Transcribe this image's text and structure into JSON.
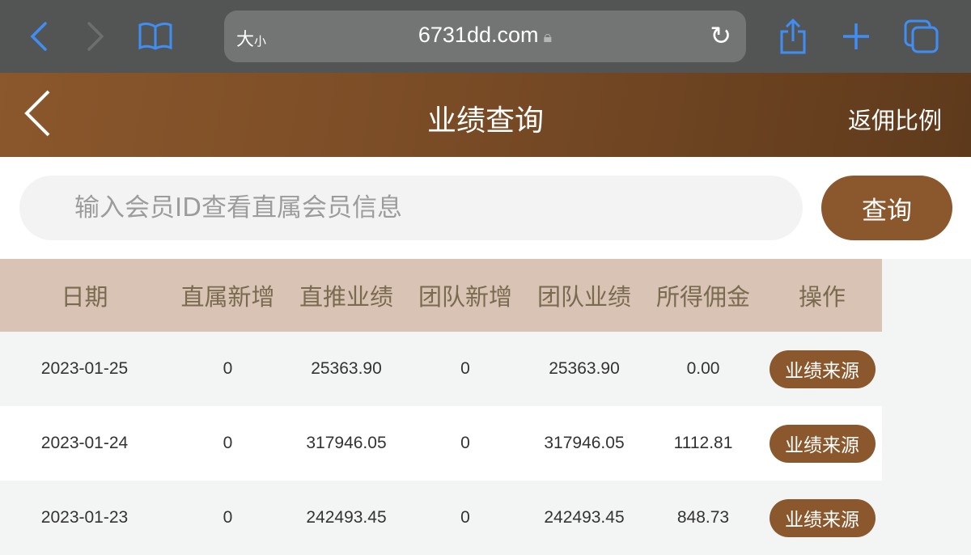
{
  "browser": {
    "text_size": "大",
    "text_size_small": "小",
    "url": "6731dd.com"
  },
  "header": {
    "title": "业绩查询",
    "right_link": "返佣比例"
  },
  "search": {
    "placeholder": "输入会员ID查看直属会员信息",
    "button": "查询"
  },
  "table": {
    "columns": [
      "日期",
      "直属新增",
      "直推业绩",
      "团队新增",
      "团队业绩",
      "所得佣金",
      "操作"
    ],
    "rows": [
      {
        "date": "2023-01-25",
        "direct_new": "0",
        "direct_perf": "25363.90",
        "team_new": "0",
        "team_perf": "25363.90",
        "commission": "0.00",
        "action": "业绩来源"
      },
      {
        "date": "2023-01-24",
        "direct_new": "0",
        "direct_perf": "317946.05",
        "team_new": "0",
        "team_perf": "317946.05",
        "commission": "1112.81",
        "action": "业绩来源"
      },
      {
        "date": "2023-01-23",
        "direct_new": "0",
        "direct_perf": "242493.45",
        "team_new": "0",
        "team_perf": "242493.45",
        "commission": "848.73",
        "action": "业绩来源"
      }
    ]
  },
  "colors": {
    "accent": "#8b572d",
    "header_bg": "#d8c3b4",
    "ios_blue": "#3f8ef5"
  }
}
